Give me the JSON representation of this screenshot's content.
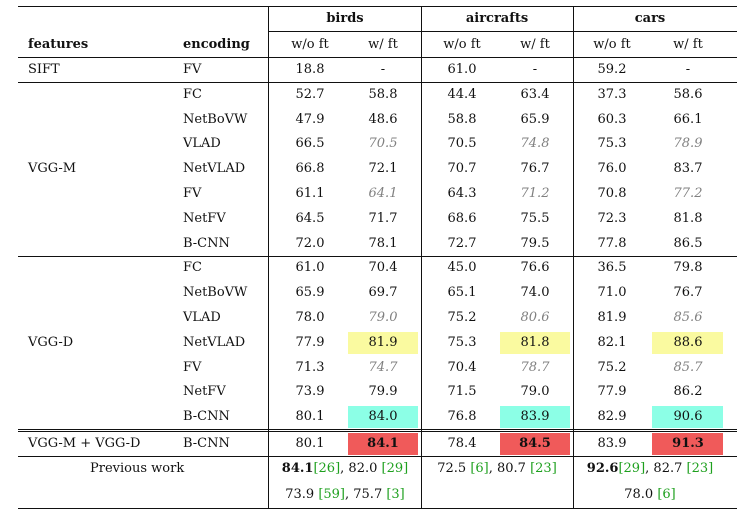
{
  "columns": {
    "features": "features",
    "encoding": "encoding",
    "groups": [
      "birds",
      "aircrafts",
      "cars"
    ],
    "sub": [
      "w/o ft",
      "w/ ft"
    ]
  },
  "highlight_colors": {
    "yellow": "#fafaa0",
    "cyan": "#8cffe6",
    "red": "#f05a5a"
  },
  "rows": [
    {
      "feature": "SIFT",
      "enc": "FV",
      "v": [
        "18.8",
        "-",
        "61.0",
        "-",
        "59.2",
        "-"
      ]
    },
    {
      "enc": "FC",
      "v": [
        "52.7",
        "58.8",
        "44.4",
        "63.4",
        "37.3",
        "58.6"
      ]
    },
    {
      "enc": "NetBoVW",
      "v": [
        "47.9",
        "48.6",
        "58.8",
        "65.9",
        "60.3",
        "66.1"
      ]
    },
    {
      "enc": "VLAD",
      "v": [
        "66.5",
        "70.5",
        "70.5",
        "74.8",
        "75.3",
        "78.9"
      ],
      "italic": [
        1,
        3,
        5
      ]
    },
    {
      "feature": "VGG-M",
      "enc": "NetVLAD",
      "v": [
        "66.8",
        "72.1",
        "70.7",
        "76.7",
        "76.0",
        "83.7"
      ]
    },
    {
      "enc": "FV",
      "v": [
        "61.1",
        "64.1",
        "64.3",
        "71.2",
        "70.8",
        "77.2"
      ],
      "italic": [
        1,
        3,
        5
      ]
    },
    {
      "enc": "NetFV",
      "v": [
        "64.5",
        "71.7",
        "68.6",
        "75.5",
        "72.3",
        "81.8"
      ]
    },
    {
      "enc": "B-CNN",
      "v": [
        "72.0",
        "78.1",
        "72.7",
        "79.5",
        "77.8",
        "86.5"
      ]
    },
    {
      "enc": "FC",
      "v": [
        "61.0",
        "70.4",
        "45.0",
        "76.6",
        "36.5",
        "79.8"
      ]
    },
    {
      "enc": "NetBoVW",
      "v": [
        "65.9",
        "69.7",
        "65.1",
        "74.0",
        "71.0",
        "76.7"
      ]
    },
    {
      "enc": "VLAD",
      "v": [
        "78.0",
        "79.0",
        "75.2",
        "80.6",
        "81.9",
        "85.6"
      ],
      "italic": [
        1,
        3,
        5
      ]
    },
    {
      "feature": "VGG-D",
      "enc": "NetVLAD",
      "v": [
        "77.9",
        "81.9",
        "75.3",
        "81.8",
        "82.1",
        "88.6"
      ],
      "hl": "yellow"
    },
    {
      "enc": "FV",
      "v": [
        "71.3",
        "74.7",
        "70.4",
        "78.7",
        "75.2",
        "85.7"
      ],
      "italic": [
        1,
        3,
        5
      ]
    },
    {
      "enc": "NetFV",
      "v": [
        "73.9",
        "79.9",
        "71.5",
        "79.0",
        "77.9",
        "86.2"
      ]
    },
    {
      "enc": "B-CNN",
      "v": [
        "80.1",
        "84.0",
        "76.8",
        "83.9",
        "82.9",
        "90.6"
      ],
      "hl": "cyan"
    },
    {
      "feature": "VGG-M + VGG-D",
      "enc": "B-CNN",
      "v": [
        "80.1",
        "84.1",
        "78.4",
        "84.5",
        "83.9",
        "91.3"
      ],
      "hl": "red",
      "bold": [
        1,
        3,
        5
      ]
    }
  ],
  "previous_work": {
    "label": "Previous work",
    "birds_line1": {
      "best": "84.1",
      "ref1": "[26]",
      "sep": ", 82.0 ",
      "ref2": "[29]"
    },
    "birds_line2": {
      "v1": "73.9 ",
      "ref1": "[59]",
      "sep": ", 75.7 ",
      "ref2": "[3]"
    },
    "aircrafts_line1": {
      "v1": "72.5 ",
      "ref1": "[6]",
      "sep": ", 80.7 ",
      "ref2": "[23]"
    },
    "cars_line1": {
      "best": "92.6",
      "ref1": "[29]",
      "sep": ", 82.7 ",
      "ref2": "[23]"
    },
    "cars_line2": {
      "v1": "78.0 ",
      "ref1": "[6]"
    }
  }
}
